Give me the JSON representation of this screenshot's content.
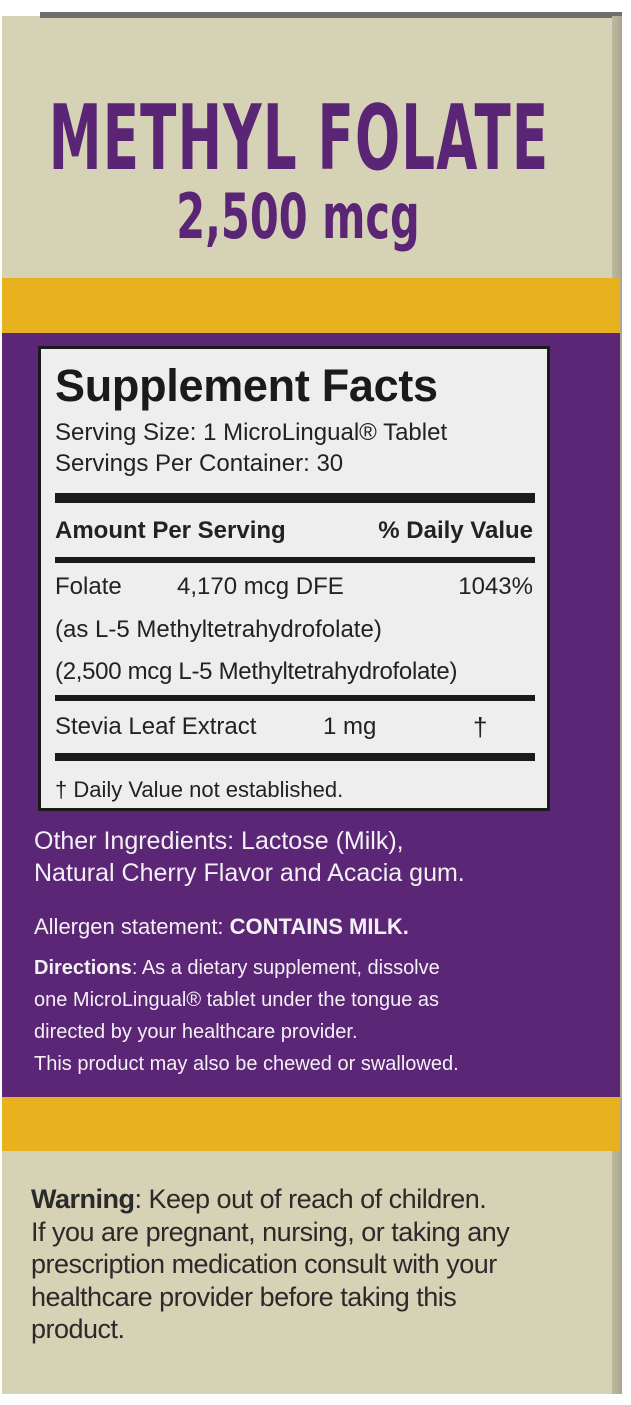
{
  "product": {
    "name": "METHYL FOLATE",
    "dose": "2,500 mcg"
  },
  "colors": {
    "purple": "#5a2675",
    "gold": "#e8b21f",
    "beige": "#d6d2b6"
  },
  "facts": {
    "title": "Supplement Facts",
    "serving_size": "Serving Size: 1 MicroLingual® Tablet",
    "servings_per_container": "Servings Per Container: 30",
    "header_amount": "Amount Per Serving",
    "header_dv": "% Daily Value",
    "rows": [
      {
        "name": "Folate",
        "amount": "4,170 mcg DFE",
        "dv": "1043%",
        "sub": [
          "(as L-5 Methyltetrahydrofolate)",
          "(2,500 mcg L-5 Methyltetrahydrofolate)"
        ]
      },
      {
        "name": "Stevia Leaf Extract",
        "amount": "1 mg",
        "dv": "†"
      }
    ],
    "footnote": "† Daily Value not established."
  },
  "other_ingredients": [
    "Other Ingredients: Lactose (Milk),",
    "Natural Cherry Flavor and Acacia gum."
  ],
  "allergen": {
    "label": "Allergen statement: ",
    "value": "CONTAINS MILK."
  },
  "directions": {
    "label": "Directions",
    "lines": [
      ": As a dietary supplement, dissolve",
      "one MicroLingual® tablet under the tongue as",
      "directed by your healthcare provider.",
      "This product may also be chewed or swallowed."
    ]
  },
  "warning": {
    "label": "Warning",
    "first": ": Keep out of reach of children.",
    "lines": [
      "If you are pregnant, nursing, or taking any",
      "prescription medication consult with your",
      "healthcare provider before taking this",
      "product."
    ]
  }
}
